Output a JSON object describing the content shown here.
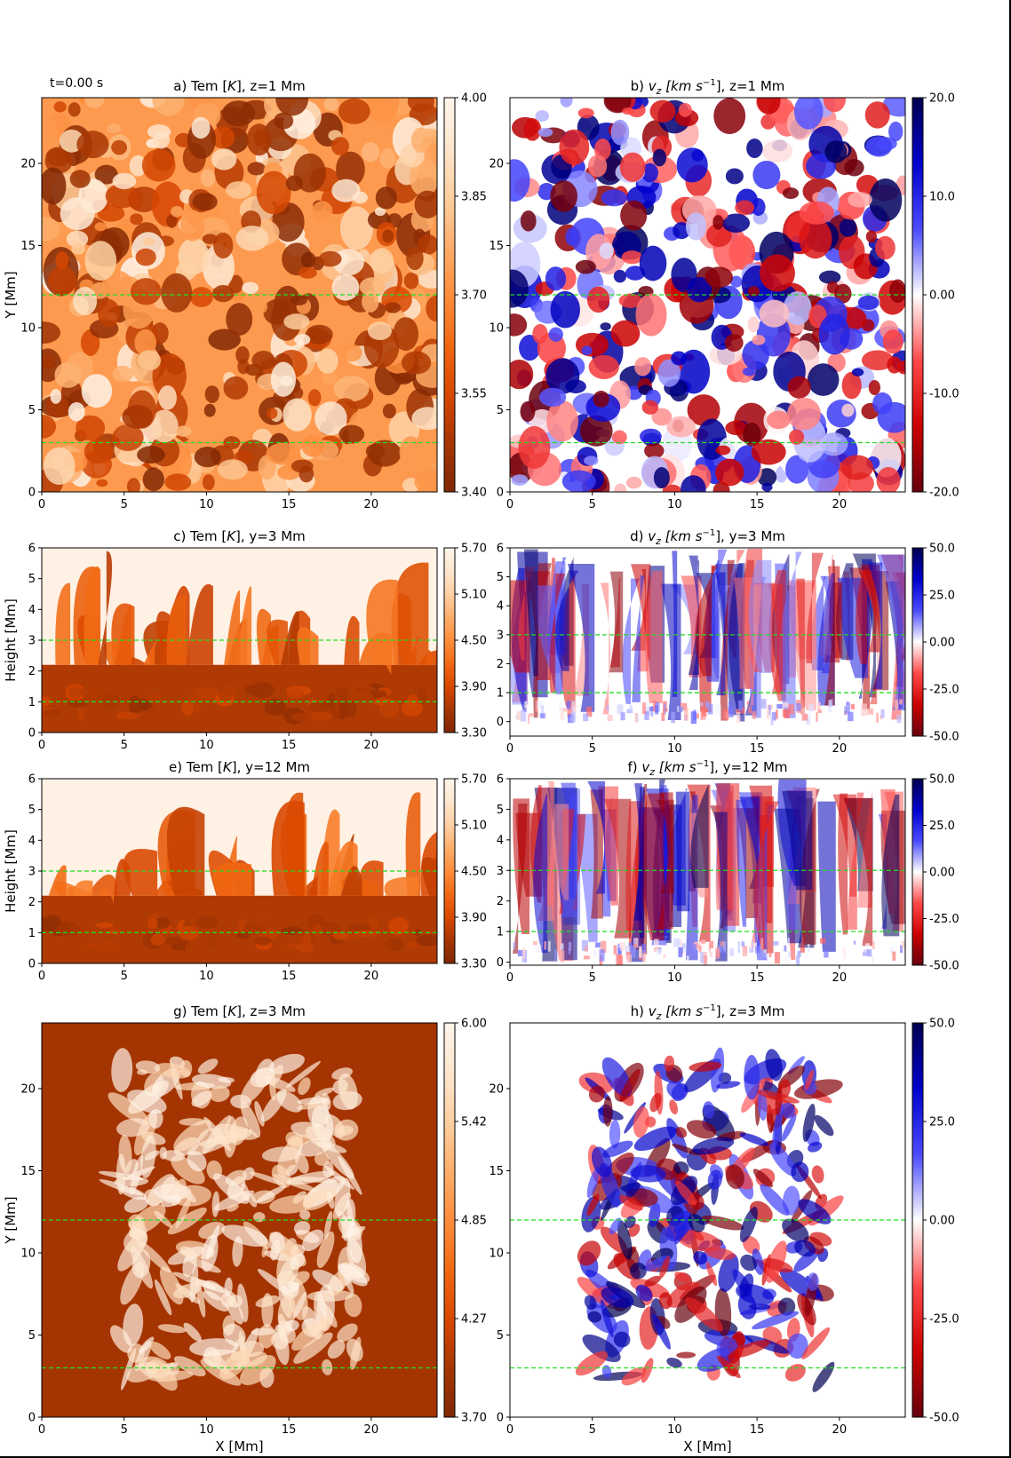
{
  "figure": {
    "time_label": "t=0.00 s"
  },
  "colors": {
    "guide_line": "#22dd22",
    "tem_colormap": [
      "#7f2704",
      "#a63603",
      "#d94801",
      "#f16913",
      "#fd8d3c",
      "#fdae6b",
      "#fdd0a2",
      "#fee6ce",
      "#fff5eb"
    ],
    "vz_colormap": [
      "#67000d",
      "#cc0000",
      "#ff4a4a",
      "#ffffff",
      "#4a4aff",
      "#0000cc",
      "#000050"
    ]
  },
  "chart_data": [
    {
      "id": "a",
      "type": "heatmap",
      "title_prefix": "a) Tem [",
      "title_var": "K",
      "title_suffix": "], z=1 Mm",
      "colormap": "tem",
      "xlabel": "",
      "ylabel": "Y [Mm]",
      "xlim": [
        0,
        24
      ],
      "ylim": [
        0,
        24
      ],
      "xticks": [
        0,
        5,
        10,
        15,
        20
      ],
      "yticks": [
        0,
        5,
        10,
        15,
        20
      ],
      "clim": [
        3.4,
        4.0
      ],
      "cbar_ticks": [
        "3.40",
        "3.55",
        "3.70",
        "3.85",
        "4.00"
      ],
      "guide_lines_y": [
        3,
        12
      ],
      "texture": "cells"
    },
    {
      "id": "b",
      "type": "heatmap",
      "title_prefix": "b) ",
      "title_var": "v",
      "title_sub": "z",
      "title_unit": " [km s",
      "title_exp": "−1",
      "title_suffix": "], z=1 Mm",
      "colormap": "vz",
      "xlabel": "",
      "ylabel": "",
      "xlim": [
        0,
        24
      ],
      "ylim": [
        0,
        24
      ],
      "xticks": [
        0,
        5,
        10,
        15,
        20
      ],
      "yticks": [
        0,
        5,
        10,
        15,
        20
      ],
      "clim": [
        -20,
        20
      ],
      "cbar_ticks": [
        "-20.0",
        "-10.0",
        "0.00",
        "10.0",
        "20.0"
      ],
      "guide_lines_y": [
        3,
        12
      ],
      "texture": "cells"
    },
    {
      "id": "c",
      "type": "heatmap",
      "title_prefix": "c) Tem [",
      "title_var": "K",
      "title_suffix": "], y=3 Mm",
      "colormap": "tem",
      "xlabel": "",
      "ylabel": "Height [Mm]",
      "xlim": [
        0,
        24
      ],
      "ylim": [
        0,
        6
      ],
      "xticks": [
        0,
        5,
        10,
        15,
        20
      ],
      "yticks": [
        0,
        1,
        2,
        3,
        4,
        5,
        6
      ],
      "clim": [
        3.3,
        5.7
      ],
      "cbar_ticks": [
        "3.30",
        "3.90",
        "4.50",
        "5.10",
        "5.70"
      ],
      "guide_lines_y": [
        1,
        3
      ],
      "texture": "vertical"
    },
    {
      "id": "d",
      "type": "heatmap",
      "title_prefix": "d) ",
      "title_var": "v",
      "title_sub": "z",
      "title_unit": " [km s",
      "title_exp": "−1",
      "title_suffix": "], y=3 Mm",
      "colormap": "vz",
      "xlabel": "",
      "ylabel": "",
      "xlim": [
        0,
        24
      ],
      "ylim": [
        -0.5,
        6
      ],
      "xticks": [
        0,
        5,
        10,
        15,
        20
      ],
      "yticks": [
        0,
        1,
        2,
        3,
        4,
        5,
        6
      ],
      "clim": [
        -50,
        50
      ],
      "cbar_ticks": [
        "-50.0",
        "-25.0",
        "0.00",
        "25.0",
        "50.0"
      ],
      "guide_lines_y": [
        1,
        3
      ],
      "texture": "vertical"
    },
    {
      "id": "e",
      "type": "heatmap",
      "title_prefix": "e) Tem [",
      "title_var": "K",
      "title_suffix": "], y=12 Mm",
      "colormap": "tem",
      "xlabel": "",
      "ylabel": "Height [Mm]",
      "xlim": [
        0,
        24
      ],
      "ylim": [
        0,
        6
      ],
      "xticks": [
        0,
        5,
        10,
        15,
        20
      ],
      "yticks": [
        0,
        1,
        2,
        3,
        4,
        5,
        6
      ],
      "clim": [
        3.3,
        5.7
      ],
      "cbar_ticks": [
        "3.30",
        "3.90",
        "4.50",
        "5.10",
        "5.70"
      ],
      "guide_lines_y": [
        1,
        3
      ],
      "texture": "vertical"
    },
    {
      "id": "f",
      "type": "heatmap",
      "title_prefix": "f) ",
      "title_var": "v",
      "title_sub": "z",
      "title_unit": " [km s",
      "title_exp": "−1",
      "title_suffix": "], y=12 Mm",
      "colormap": "vz",
      "xlabel": "",
      "ylabel": "",
      "xlim": [
        0,
        24
      ],
      "ylim": [
        -0.1,
        6
      ],
      "xticks": [
        0,
        5,
        10,
        15,
        20
      ],
      "yticks": [
        0,
        1,
        2,
        3,
        4,
        5,
        6
      ],
      "clim": [
        -50,
        50
      ],
      "cbar_ticks": [
        "-50.0",
        "-25.0",
        "0.00",
        "25.0",
        "50.0"
      ],
      "guide_lines_y": [
        1,
        3
      ],
      "texture": "vertical"
    },
    {
      "id": "g",
      "type": "heatmap",
      "title_prefix": "g) Tem [",
      "title_var": "K",
      "title_suffix": "], z=3 Mm",
      "colormap": "tem",
      "xlabel": "X [Mm]",
      "ylabel": "Y [Mm]",
      "xlim": [
        0,
        24
      ],
      "ylim": [
        0,
        24
      ],
      "xticks": [
        0,
        5,
        10,
        15,
        20
      ],
      "yticks": [
        0,
        5,
        10,
        15,
        20
      ],
      "clim": [
        3.7,
        6.0
      ],
      "cbar_ticks": [
        "3.70",
        "4.27",
        "4.85",
        "5.42",
        "6.00"
      ],
      "guide_lines_y": [
        3,
        12
      ],
      "texture": "blobs"
    },
    {
      "id": "h",
      "type": "heatmap",
      "title_prefix": "h) ",
      "title_var": "v",
      "title_sub": "z",
      "title_unit": " [km s",
      "title_exp": "−1",
      "title_suffix": "], z=3 Mm",
      "colormap": "vz",
      "xlabel": "X [Mm]",
      "ylabel": "",
      "xlim": [
        0,
        24
      ],
      "ylim": [
        0,
        24
      ],
      "xticks": [
        0,
        5,
        10,
        15,
        20
      ],
      "yticks": [
        0,
        5,
        10,
        15,
        20
      ],
      "clim": [
        -50,
        50
      ],
      "cbar_ticks": [
        "-50.0",
        "-25.0",
        "0.00",
        "25.0",
        "50.0"
      ],
      "guide_lines_y": [
        3,
        12
      ],
      "texture": "blobs"
    }
  ]
}
